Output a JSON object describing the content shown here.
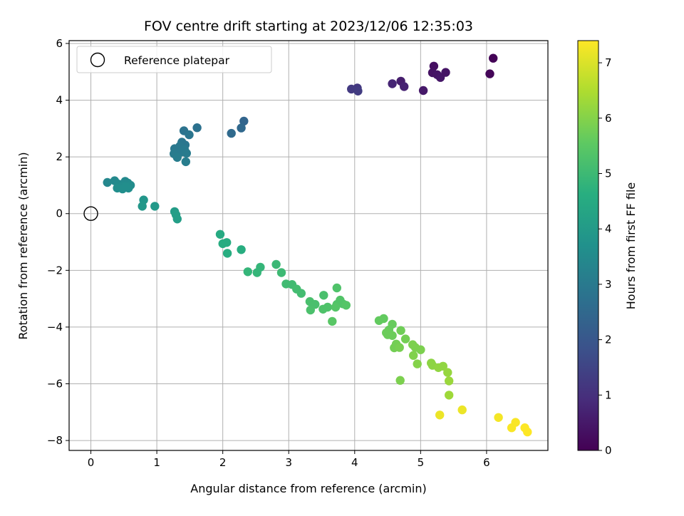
{
  "chart_data": {
    "type": "scatter",
    "title": "FOV centre drift starting at 2023/12/06 12:35:03",
    "xlabel": "Angular distance from reference (arcmin)",
    "ylabel": "Rotation from reference (arcmin)",
    "xlim": [
      -0.33,
      6.93
    ],
    "ylim": [
      -8.35,
      6.1
    ],
    "xticks": [
      0,
      1,
      2,
      3,
      4,
      5,
      6
    ],
    "yticks": [
      -8,
      -6,
      -4,
      -2,
      0,
      2,
      4,
      6
    ],
    "grid": true,
    "legend": {
      "label": "Reference platepar",
      "placement": "top-left"
    },
    "colorbar": {
      "label": "Hours from first FF file",
      "range": [
        0,
        7.4
      ],
      "ticks": [
        0,
        1,
        2,
        3,
        4,
        5,
        6,
        7
      ],
      "colormap": "viridis"
    },
    "reference_point": {
      "x": 0,
      "y": 0
    },
    "points": [
      {
        "x": 6.1,
        "y": 5.48,
        "c": 0.05
      },
      {
        "x": 6.05,
        "y": 4.93,
        "c": 0.1
      },
      {
        "x": 5.2,
        "y": 5.2,
        "c": 0.3
      },
      {
        "x": 5.18,
        "y": 4.97,
        "c": 0.35
      },
      {
        "x": 5.25,
        "y": 4.9,
        "c": 0.4
      },
      {
        "x": 5.3,
        "y": 4.8,
        "c": 0.45
      },
      {
        "x": 5.38,
        "y": 4.98,
        "c": 0.4
      },
      {
        "x": 5.04,
        "y": 4.34,
        "c": 0.5
      },
      {
        "x": 4.7,
        "y": 4.67,
        "c": 0.6
      },
      {
        "x": 4.75,
        "y": 4.48,
        "c": 0.7
      },
      {
        "x": 4.57,
        "y": 4.58,
        "c": 0.75
      },
      {
        "x": 4.04,
        "y": 4.43,
        "c": 1.2
      },
      {
        "x": 3.95,
        "y": 4.39,
        "c": 1.25
      },
      {
        "x": 4.05,
        "y": 4.32,
        "c": 1.3
      },
      {
        "x": 2.32,
        "y": 3.26,
        "c": 2.4
      },
      {
        "x": 2.28,
        "y": 3.02,
        "c": 2.5
      },
      {
        "x": 2.13,
        "y": 2.83,
        "c": 2.55
      },
      {
        "x": 1.61,
        "y": 3.03,
        "c": 2.75
      },
      {
        "x": 1.41,
        "y": 2.92,
        "c": 2.8
      },
      {
        "x": 1.49,
        "y": 2.78,
        "c": 2.85
      },
      {
        "x": 1.38,
        "y": 2.52,
        "c": 2.9
      },
      {
        "x": 1.43,
        "y": 2.42,
        "c": 2.9
      },
      {
        "x": 1.35,
        "y": 2.38,
        "c": 2.95
      },
      {
        "x": 1.27,
        "y": 2.29,
        "c": 2.95
      },
      {
        "x": 1.42,
        "y": 2.25,
        "c": 3.0
      },
      {
        "x": 1.37,
        "y": 2.17,
        "c": 3.0
      },
      {
        "x": 1.45,
        "y": 2.13,
        "c": 3.05
      },
      {
        "x": 1.26,
        "y": 2.11,
        "c": 3.05
      },
      {
        "x": 1.31,
        "y": 1.98,
        "c": 3.1
      },
      {
        "x": 1.44,
        "y": 1.83,
        "c": 3.1
      },
      {
        "x": 0.25,
        "y": 1.1,
        "c": 3.4
      },
      {
        "x": 0.36,
        "y": 1.16,
        "c": 3.45
      },
      {
        "x": 0.52,
        "y": 1.14,
        "c": 3.45
      },
      {
        "x": 0.56,
        "y": 1.08,
        "c": 3.5
      },
      {
        "x": 0.42,
        "y": 1.04,
        "c": 3.5
      },
      {
        "x": 0.6,
        "y": 1.0,
        "c": 3.55
      },
      {
        "x": 0.5,
        "y": 0.97,
        "c": 3.55
      },
      {
        "x": 0.46,
        "y": 0.93,
        "c": 3.55
      },
      {
        "x": 0.4,
        "y": 0.9,
        "c": 3.6
      },
      {
        "x": 0.57,
        "y": 0.9,
        "c": 3.6
      },
      {
        "x": 0.48,
        "y": 0.87,
        "c": 3.6
      },
      {
        "x": 0.53,
        "y": 0.95,
        "c": 3.6
      },
      {
        "x": 0.8,
        "y": 0.48,
        "c": 3.85
      },
      {
        "x": 0.78,
        "y": 0.26,
        "c": 3.9
      },
      {
        "x": 0.97,
        "y": 0.26,
        "c": 3.95
      },
      {
        "x": 1.27,
        "y": 0.07,
        "c": 4.05
      },
      {
        "x": 1.29,
        "y": -0.04,
        "c": 4.1
      },
      {
        "x": 1.31,
        "y": -0.19,
        "c": 4.1
      },
      {
        "x": 1.96,
        "y": -0.73,
        "c": 4.5
      },
      {
        "x": 2.0,
        "y": -1.06,
        "c": 4.55
      },
      {
        "x": 2.06,
        "y": -1.02,
        "c": 4.55
      },
      {
        "x": 2.07,
        "y": -1.4,
        "c": 4.6
      },
      {
        "x": 2.28,
        "y": -1.27,
        "c": 4.6
      },
      {
        "x": 2.38,
        "y": -2.05,
        "c": 4.85
      },
      {
        "x": 2.52,
        "y": -2.08,
        "c": 4.85
      },
      {
        "x": 2.57,
        "y": -1.89,
        "c": 4.85
      },
      {
        "x": 2.81,
        "y": -1.79,
        "c": 4.95
      },
      {
        "x": 2.89,
        "y": -2.08,
        "c": 5.0
      },
      {
        "x": 2.96,
        "y": -2.48,
        "c": 5.05
      },
      {
        "x": 3.05,
        "y": -2.5,
        "c": 5.05
      },
      {
        "x": 3.12,
        "y": -2.66,
        "c": 5.1
      },
      {
        "x": 3.19,
        "y": -2.81,
        "c": 5.1
      },
      {
        "x": 3.32,
        "y": -3.1,
        "c": 5.2
      },
      {
        "x": 3.4,
        "y": -3.2,
        "c": 5.2
      },
      {
        "x": 3.33,
        "y": -3.4,
        "c": 5.25
      },
      {
        "x": 3.53,
        "y": -2.88,
        "c": 5.2
      },
      {
        "x": 3.52,
        "y": -3.37,
        "c": 5.3
      },
      {
        "x": 3.59,
        "y": -3.3,
        "c": 5.3
      },
      {
        "x": 3.73,
        "y": -2.62,
        "c": 5.3
      },
      {
        "x": 3.78,
        "y": -3.05,
        "c": 5.35
      },
      {
        "x": 3.73,
        "y": -3.2,
        "c": 5.35
      },
      {
        "x": 3.82,
        "y": -3.18,
        "c": 5.35
      },
      {
        "x": 3.87,
        "y": -3.23,
        "c": 5.4
      },
      {
        "x": 3.71,
        "y": -3.3,
        "c": 5.4
      },
      {
        "x": 3.66,
        "y": -3.8,
        "c": 5.45
      },
      {
        "x": 4.37,
        "y": -3.77,
        "c": 5.6
      },
      {
        "x": 4.44,
        "y": -3.7,
        "c": 5.6
      },
      {
        "x": 4.57,
        "y": -3.9,
        "c": 5.65
      },
      {
        "x": 4.52,
        "y": -4.1,
        "c": 5.65
      },
      {
        "x": 4.48,
        "y": -4.2,
        "c": 5.7
      },
      {
        "x": 4.57,
        "y": -4.3,
        "c": 5.7
      },
      {
        "x": 4.5,
        "y": -4.27,
        "c": 5.7
      },
      {
        "x": 4.7,
        "y": -4.12,
        "c": 5.75
      },
      {
        "x": 4.77,
        "y": -4.42,
        "c": 5.8
      },
      {
        "x": 4.63,
        "y": -4.6,
        "c": 5.8
      },
      {
        "x": 4.6,
        "y": -4.73,
        "c": 5.8
      },
      {
        "x": 4.68,
        "y": -4.72,
        "c": 5.85
      },
      {
        "x": 4.88,
        "y": -4.62,
        "c": 5.9
      },
      {
        "x": 4.92,
        "y": -4.72,
        "c": 5.9
      },
      {
        "x": 5.0,
        "y": -4.8,
        "c": 5.9
      },
      {
        "x": 4.89,
        "y": -5.0,
        "c": 5.95
      },
      {
        "x": 4.95,
        "y": -5.3,
        "c": 6.0
      },
      {
        "x": 4.69,
        "y": -5.88,
        "c": 5.9
      },
      {
        "x": 5.16,
        "y": -5.27,
        "c": 6.1
      },
      {
        "x": 5.18,
        "y": -5.35,
        "c": 6.1
      },
      {
        "x": 5.27,
        "y": -5.43,
        "c": 6.15
      },
      {
        "x": 5.34,
        "y": -5.38,
        "c": 6.15
      },
      {
        "x": 5.41,
        "y": -5.6,
        "c": 6.2
      },
      {
        "x": 5.43,
        "y": -5.9,
        "c": 6.25
      },
      {
        "x": 5.43,
        "y": -6.4,
        "c": 6.3
      },
      {
        "x": 5.29,
        "y": -7.1,
        "c": 7.2
      },
      {
        "x": 5.63,
        "y": -6.92,
        "c": 7.2
      },
      {
        "x": 6.18,
        "y": -7.19,
        "c": 7.3
      },
      {
        "x": 6.44,
        "y": -7.36,
        "c": 7.35
      },
      {
        "x": 6.38,
        "y": -7.55,
        "c": 7.35
      },
      {
        "x": 6.58,
        "y": -7.55,
        "c": 7.4
      },
      {
        "x": 6.62,
        "y": -7.7,
        "c": 7.4
      }
    ]
  }
}
